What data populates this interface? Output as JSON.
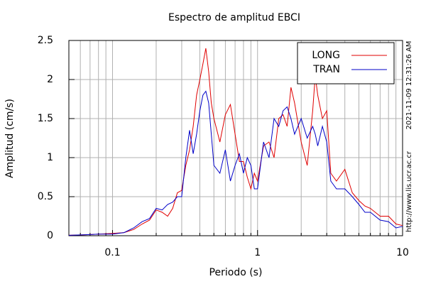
{
  "chart_data": {
    "type": "line",
    "title": "Espectro de amplitud EBCI",
    "x_label": "Periodo (s)",
    "y_label": "Amplitud (cm/s)",
    "annotations": [
      "2021-11-09 12:31:26 AM",
      "http://www.lis.ucr.ac.cr"
    ],
    "x_scale": "log",
    "xlim": [
      0.05,
      10
    ],
    "ylim": [
      0,
      2.5
    ],
    "xticks": [
      0.1,
      1,
      10
    ],
    "xminorticks": [
      0.06,
      0.07,
      0.08,
      0.09,
      0.2,
      0.3,
      0.4,
      0.5,
      0.6,
      0.7,
      0.8,
      0.9,
      2,
      3,
      4,
      5,
      6,
      7,
      8,
      9
    ],
    "yticks": [
      0,
      0.5,
      1,
      1.5,
      2,
      2.5
    ],
    "grid": true,
    "legend": "upper right",
    "x": [
      0.05,
      0.06,
      0.07,
      0.08,
      0.09,
      0.1,
      0.12,
      0.14,
      0.16,
      0.18,
      0.2,
      0.22,
      0.24,
      0.26,
      0.28,
      0.3,
      0.32,
      0.34,
      0.36,
      0.38,
      0.4,
      0.42,
      0.44,
      0.46,
      0.48,
      0.5,
      0.55,
      0.6,
      0.65,
      0.7,
      0.75,
      0.8,
      0.85,
      0.9,
      0.95,
      1.0,
      1.1,
      1.2,
      1.3,
      1.4,
      1.5,
      1.6,
      1.7,
      1.8,
      2.0,
      2.2,
      2.4,
      2.5,
      2.6,
      2.8,
      3.0,
      3.2,
      3.5,
      4.0,
      4.5,
      5,
      5.5,
      6,
      7,
      8,
      9,
      10
    ],
    "series": [
      {
        "name": "LONG",
        "color": "#e00000",
        "values": [
          0.005,
          0.01,
          0.015,
          0.02,
          0.025,
          0.03,
          0.04,
          0.08,
          0.15,
          0.2,
          0.33,
          0.3,
          0.25,
          0.35,
          0.55,
          0.58,
          0.9,
          1.1,
          1.4,
          1.8,
          2.0,
          2.2,
          2.4,
          2.1,
          1.7,
          1.5,
          1.2,
          1.55,
          1.68,
          1.3,
          0.95,
          0.95,
          0.75,
          0.6,
          0.8,
          0.7,
          1.15,
          1.2,
          1.0,
          1.5,
          1.55,
          1.4,
          1.9,
          1.7,
          1.2,
          0.9,
          1.6,
          2.05,
          1.8,
          1.5,
          1.6,
          0.8,
          0.7,
          0.85,
          0.55,
          0.45,
          0.38,
          0.35,
          0.25,
          0.25,
          0.15,
          0.13
        ]
      },
      {
        "name": "TRAN",
        "color": "#0000c8",
        "values": [
          0.005,
          0.01,
          0.015,
          0.02,
          0.02,
          0.02,
          0.04,
          0.1,
          0.18,
          0.22,
          0.35,
          0.33,
          0.4,
          0.43,
          0.5,
          0.5,
          1.0,
          1.35,
          1.05,
          1.3,
          1.6,
          1.8,
          1.85,
          1.7,
          1.3,
          0.9,
          0.8,
          1.1,
          0.7,
          0.9,
          1.05,
          0.8,
          1.0,
          0.9,
          0.6,
          0.6,
          1.2,
          1.0,
          1.5,
          1.4,
          1.6,
          1.65,
          1.5,
          1.3,
          1.5,
          1.25,
          1.4,
          1.3,
          1.15,
          1.4,
          1.2,
          0.7,
          0.6,
          0.6,
          0.5,
          0.4,
          0.3,
          0.3,
          0.2,
          0.18,
          0.1,
          0.12
        ]
      }
    ]
  }
}
